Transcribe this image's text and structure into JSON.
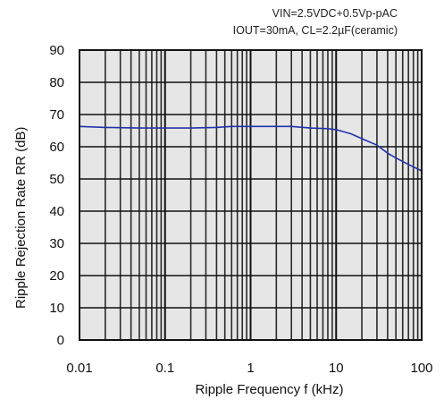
{
  "chart_data": {
    "type": "line",
    "conditions": [
      "VIN=2.5VDC+0.5Vp-pAC",
      "IOUT=30mA, CL=2.2µF(ceramic)"
    ],
    "xlabel": "Ripple Frequency f (kHz)",
    "ylabel": "Ripple Rejection Rate RR (dB)",
    "xscale": "log",
    "xlim": [
      0.01,
      100
    ],
    "ylim": [
      0,
      90
    ],
    "x_ticks": [
      "0.01",
      "0.1",
      "1",
      "10",
      "100"
    ],
    "y_ticks": [
      "0",
      "10",
      "20",
      "30",
      "40",
      "50",
      "60",
      "70",
      "80",
      "90"
    ],
    "grid": true,
    "series": [
      {
        "color": "#2233aa",
        "x": [
          0.01,
          0.02,
          0.05,
          0.1,
          0.2,
          0.4,
          0.6,
          1,
          2,
          3,
          5,
          8,
          10,
          15,
          20,
          30,
          40,
          50,
          70,
          100
        ],
        "y": [
          66.3,
          66,
          65.8,
          65.8,
          65.8,
          66,
          66.3,
          66.3,
          66.3,
          66.3,
          65.8,
          65.6,
          65.3,
          64,
          62.5,
          60.5,
          58,
          56.5,
          54.5,
          52.5
        ]
      }
    ]
  }
}
